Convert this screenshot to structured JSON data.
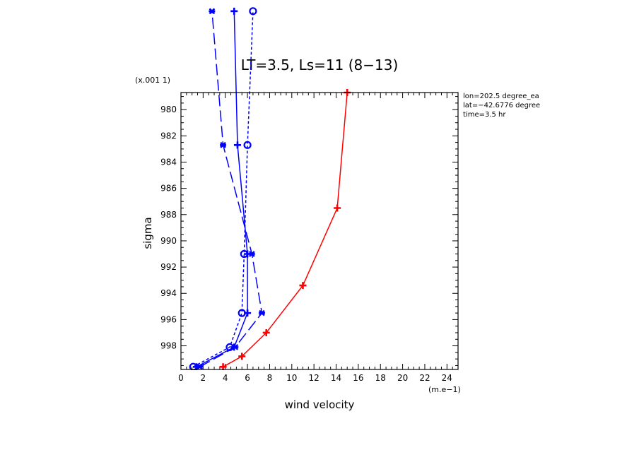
{
  "chart_data": {
    "type": "line",
    "title": "LT=3.5, Ls=11 (8−13)",
    "xlabel": "wind velocity",
    "ylabel": "sigma",
    "x_unit": "(m.e−1)",
    "y_unit": "(x.001 1)",
    "xlim": [
      0,
      25
    ],
    "ylim": [
      999.8,
      978.7
    ],
    "x_ticks": [
      0,
      2,
      4,
      6,
      8,
      10,
      12,
      14,
      16,
      18,
      20,
      22,
      24
    ],
    "y_ticks": [
      980,
      982,
      984,
      986,
      988,
      990,
      992,
      994,
      996,
      998
    ],
    "grid": false,
    "annotations": [
      "lon=202.5 degree_ea",
      "lat=−42.6776 degree",
      "time=3.5 hr"
    ],
    "series": [
      {
        "color": "#0000ff",
        "dash": "solid",
        "marker": "plus",
        "points": [
          [
            1.4,
            999.6
          ],
          [
            4.8,
            998.1
          ],
          [
            6.0,
            995.5
          ],
          [
            6.0,
            991.0
          ],
          [
            5.1,
            982.7
          ],
          [
            4.8,
            972.5
          ]
        ]
      },
      {
        "color": "#0000ff",
        "dash": "dashed",
        "marker": "x",
        "points": [
          [
            1.7,
            999.6
          ],
          [
            4.9,
            998.1
          ],
          [
            7.3,
            995.5
          ],
          [
            6.4,
            991.0
          ],
          [
            3.8,
            982.7
          ],
          [
            2.8,
            972.5
          ]
        ]
      },
      {
        "color": "#0000ff",
        "dash": "dotted",
        "marker": "circle",
        "points": [
          [
            1.1,
            999.6
          ],
          [
            4.4,
            998.1
          ],
          [
            5.5,
            995.5
          ],
          [
            5.7,
            991.0
          ],
          [
            6.0,
            982.7
          ],
          [
            6.5,
            972.5
          ]
        ]
      },
      {
        "color": "#ff0000",
        "dash": "solid",
        "marker": "plus",
        "points": [
          [
            3.8,
            999.6
          ],
          [
            5.5,
            998.8
          ],
          [
            7.7,
            997.0
          ],
          [
            11.0,
            993.4
          ],
          [
            14.1,
            987.5
          ],
          [
            15.0,
            978.7
          ]
        ]
      }
    ]
  }
}
